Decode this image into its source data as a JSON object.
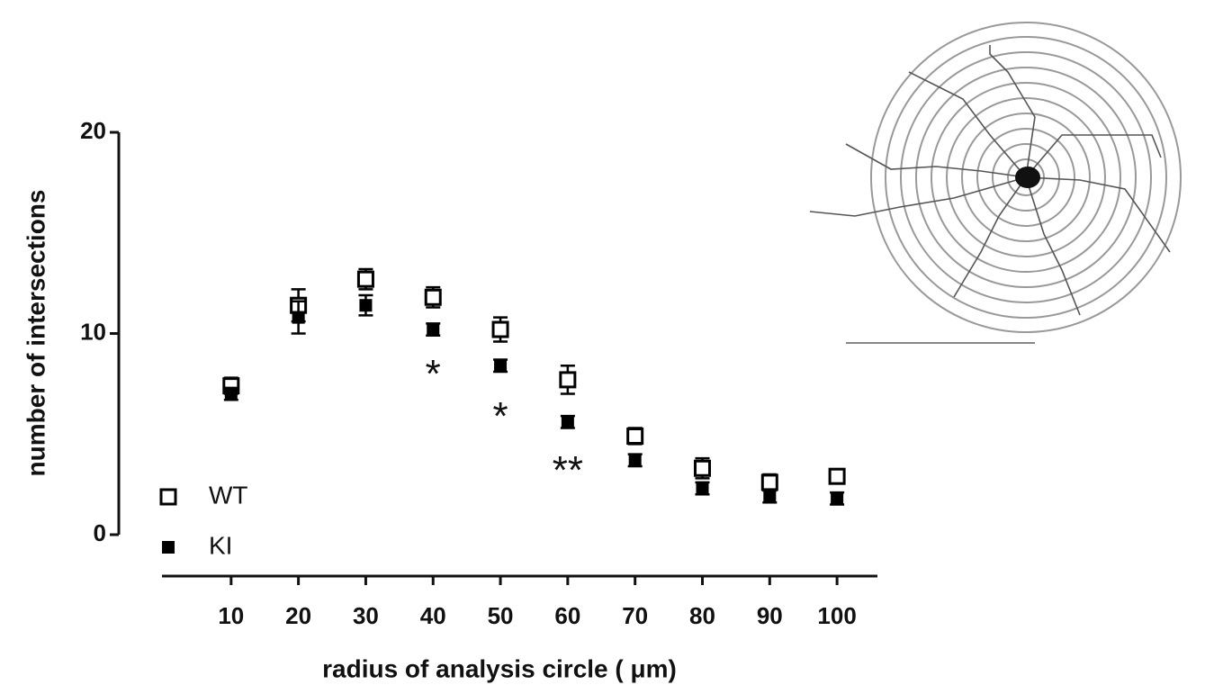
{
  "chart_data": {
    "type": "scatter",
    "xlabel": "radius of analysis circle ( μm)",
    "ylabel": "number of intersections",
    "x": [
      10,
      20,
      30,
      40,
      50,
      60,
      70,
      80,
      90,
      100
    ],
    "series": [
      {
        "name": "WT",
        "color": "#000000",
        "marker": "open-square",
        "values": [
          7.4,
          11.4,
          12.7,
          11.8,
          10.2,
          7.7,
          4.9,
          3.3,
          2.6,
          2.9
        ],
        "errors": [
          0.4,
          0.8,
          0.5,
          0.5,
          0.6,
          0.7,
          0.4,
          0.5,
          0.4,
          0.3
        ]
      },
      {
        "name": "KI",
        "color": "#000000",
        "marker": "filled-square",
        "values": [
          7.0,
          10.8,
          11.4,
          10.2,
          8.4,
          5.6,
          3.7,
          2.3,
          1.9,
          1.8
        ],
        "errors": [
          0.3,
          0.8,
          0.5,
          0.3,
          0.3,
          0.3,
          0.3,
          0.3,
          0.3,
          0.3
        ]
      }
    ],
    "annotations": [
      {
        "text": "*",
        "x": 40,
        "y": 8.4
      },
      {
        "text": "*",
        "x": 50,
        "y": 6.3
      },
      {
        "text": "**",
        "x": 60,
        "y": 3.6
      }
    ],
    "xlim": [
      0,
      106
    ],
    "xticks": [
      10,
      20,
      30,
      40,
      50,
      60,
      70,
      80,
      90,
      100
    ],
    "ylim": [
      0,
      20
    ],
    "yticks": [
      0,
      10,
      20
    ],
    "legend": "lower-left"
  }
}
